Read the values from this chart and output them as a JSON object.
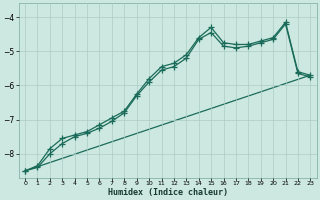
{
  "xlabel": "Humidex (Indice chaleur)",
  "bg_color": "#cce8e0",
  "grid_color": "#aaccc4",
  "line_color": "#1a6b5a",
  "xlim": [
    -0.5,
    23.5
  ],
  "ylim": [
    -8.7,
    -3.6
  ],
  "yticks": [
    -8,
    -7,
    -6,
    -5,
    -4
  ],
  "xticks": [
    0,
    1,
    2,
    3,
    4,
    5,
    6,
    7,
    8,
    9,
    10,
    11,
    12,
    13,
    14,
    15,
    16,
    17,
    18,
    19,
    20,
    21,
    22,
    23
  ],
  "line1_x": [
    0,
    1,
    2,
    3,
    4,
    5,
    6,
    7,
    8,
    9,
    10,
    11,
    12,
    13,
    14,
    15,
    16,
    17,
    18,
    19,
    20,
    21,
    22,
    23
  ],
  "line1_y": [
    -8.5,
    -8.35,
    -7.85,
    -7.55,
    -7.45,
    -7.35,
    -7.15,
    -6.95,
    -6.75,
    -6.25,
    -5.8,
    -5.45,
    -5.35,
    -5.1,
    -4.6,
    -4.3,
    -4.75,
    -4.8,
    -4.8,
    -4.7,
    -4.6,
    -4.15,
    -5.6,
    -5.7
  ],
  "line2_x": [
    0,
    1,
    2,
    3,
    4,
    5,
    6,
    7,
    8,
    9,
    10,
    11,
    12,
    13,
    14,
    15,
    16,
    17,
    18,
    19,
    20,
    21,
    22,
    23
  ],
  "line2_y": [
    -8.5,
    -8.4,
    -8.0,
    -7.7,
    -7.5,
    -7.4,
    -7.25,
    -7.05,
    -6.8,
    -6.3,
    -5.9,
    -5.55,
    -5.45,
    -5.2,
    -4.65,
    -4.45,
    -4.85,
    -4.9,
    -4.85,
    -4.75,
    -4.65,
    -4.2,
    -5.65,
    -5.75
  ],
  "line3_x": [
    0,
    23
  ],
  "line3_y": [
    -8.5,
    -5.7
  ]
}
